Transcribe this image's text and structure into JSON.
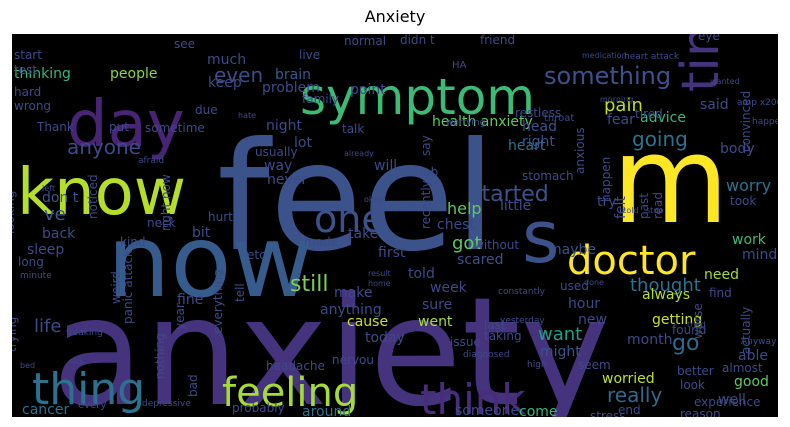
{
  "chart_data": {
    "type": "word_cloud",
    "title": "Anxiety",
    "background": "#000000",
    "colormap": "viridis",
    "words": [
      {
        "text": "anxiety",
        "weight": 100
      },
      {
        "text": "feel",
        "weight": 88
      },
      {
        "text": "now",
        "weight": 62
      },
      {
        "text": "know",
        "weight": 55
      },
      {
        "text": "m",
        "weight": 58
      },
      {
        "text": "day",
        "weight": 46
      },
      {
        "text": "symptom",
        "weight": 44
      },
      {
        "text": "thing",
        "weight": 40
      },
      {
        "text": "feeling",
        "weight": 40
      },
      {
        "text": "think",
        "weight": 40
      },
      {
        "text": "time",
        "weight": 42
      },
      {
        "text": "doctor",
        "weight": 34
      },
      {
        "text": "s",
        "weight": 36
      },
      {
        "text": "one",
        "weight": 28
      },
      {
        "text": "something",
        "weight": 22
      },
      {
        "text": "pain",
        "weight": 18
      },
      {
        "text": "going",
        "weight": 18
      },
      {
        "text": "anyone",
        "weight": 18
      },
      {
        "text": "even",
        "weight": 18
      },
      {
        "text": "really",
        "weight": 20
      },
      {
        "text": "started",
        "weight": 18
      },
      {
        "text": "still",
        "weight": 18
      },
      {
        "text": "thought",
        "weight": 18
      },
      {
        "text": "go",
        "weight": 20
      },
      {
        "text": "want",
        "weight": 18
      },
      {
        "text": "health anxiety",
        "weight": 14
      },
      {
        "text": "heart",
        "weight": 14
      },
      {
        "text": "got",
        "weight": 16
      },
      {
        "text": "help",
        "weight": 14
      },
      {
        "text": "life",
        "weight": 16
      },
      {
        "text": "ve",
        "weight": 16
      },
      {
        "text": "don t",
        "weight": 14
      },
      {
        "text": "worry",
        "weight": 14
      },
      {
        "text": "people",
        "weight": 12
      },
      {
        "text": "brain",
        "weight": 13
      },
      {
        "text": "thinking",
        "weight": 12
      },
      {
        "text": "cancer",
        "weight": 12
      },
      {
        "text": "around",
        "weight": 12
      },
      {
        "text": "someone",
        "weight": 12
      },
      {
        "text": "come",
        "weight": 12
      },
      {
        "text": "worried",
        "weight": 12
      },
      {
        "text": "good",
        "weight": 12
      },
      {
        "text": "getting",
        "weight": 12
      },
      {
        "text": "month",
        "weight": 12
      },
      {
        "text": "might",
        "weight": 12
      },
      {
        "text": "mind",
        "weight": 12
      },
      {
        "text": "work",
        "weight": 12
      },
      {
        "text": "need",
        "weight": 12
      },
      {
        "text": "always",
        "weight": 12
      },
      {
        "text": "head",
        "weight": 12
      },
      {
        "text": "right",
        "weight": 12
      },
      {
        "text": "recently",
        "weight": 11
      },
      {
        "text": "say",
        "weight": 11
      },
      {
        "text": "anxious",
        "weight": 11
      },
      {
        "text": "fear",
        "weight": 11
      },
      {
        "text": "advice",
        "weight": 11
      },
      {
        "text": "felt",
        "weight": 11
      },
      {
        "text": "happen",
        "weight": 11
      },
      {
        "text": "body",
        "weight": 11
      },
      {
        "text": "past",
        "weight": 10
      },
      {
        "text": "read",
        "weight": 10
      },
      {
        "text": "try",
        "weight": 12
      },
      {
        "text": "maybe",
        "weight": 11
      },
      {
        "text": "scared",
        "weight": 12
      },
      {
        "text": "chest",
        "weight": 11
      },
      {
        "text": "little",
        "weight": 11
      },
      {
        "text": "first",
        "weight": 11
      },
      {
        "text": "told",
        "weight": 11
      },
      {
        "text": "week",
        "weight": 11
      },
      {
        "text": "sure",
        "weight": 11
      },
      {
        "text": "went",
        "weight": 11
      },
      {
        "text": "hour",
        "weight": 11
      },
      {
        "text": "new",
        "weight": 11
      },
      {
        "text": "used",
        "weight": 10
      },
      {
        "text": "issue",
        "weight": 10
      },
      {
        "text": "seem",
        "weight": 10
      },
      {
        "text": "today",
        "weight": 11
      },
      {
        "text": "cause",
        "weight": 11
      },
      {
        "text": "anything",
        "weight": 11
      },
      {
        "text": "make",
        "weight": 11
      },
      {
        "text": "take",
        "weight": 11
      },
      {
        "text": "made",
        "weight": 10
      },
      {
        "text": "will",
        "weight": 11
      },
      {
        "text": "never",
        "weight": 10
      },
      {
        "text": "way",
        "weight": 10
      },
      {
        "text": "usually",
        "weight": 9
      },
      {
        "text": "lot",
        "weight": 11
      },
      {
        "text": "night",
        "weight": 11
      },
      {
        "text": "problem",
        "weight": 11
      },
      {
        "text": "keep",
        "weight": 11
      },
      {
        "text": "much",
        "weight": 11
      },
      {
        "text": "point",
        "weight": 11
      },
      {
        "text": "normal",
        "weight": 10
      },
      {
        "text": "friend",
        "weight": 10
      },
      {
        "text": "see",
        "weight": 10
      },
      {
        "text": "start",
        "weight": 10
      },
      {
        "text": "test",
        "weight": 10
      },
      {
        "text": "hard",
        "weight": 10
      },
      {
        "text": "wrong",
        "weight": 9
      },
      {
        "text": "Thank",
        "weight": 10
      },
      {
        "text": "sometime",
        "weight": 10
      },
      {
        "text": "back",
        "weight": 11
      },
      {
        "text": "sleep",
        "weight": 11
      },
      {
        "text": "long",
        "weight": 9
      },
      {
        "text": "trying",
        "weight": 10
      },
      {
        "text": "panic attack",
        "weight": 10
      },
      {
        "text": "weird",
        "weight": 10
      },
      {
        "text": "fine",
        "weight": 10
      },
      {
        "text": "year",
        "weight": 10
      },
      {
        "text": "bit",
        "weight": 11
      },
      {
        "text": "tell",
        "weight": 10
      },
      {
        "text": "everything",
        "weight": 10
      },
      {
        "text": "nothing",
        "weight": 10
      },
      {
        "text": "bad",
        "weight": 10
      },
      {
        "text": "probably",
        "weight": 9
      },
      {
        "text": "headache",
        "weight": 9
      },
      {
        "text": "nervou",
        "weight": 9
      },
      {
        "text": "last",
        "weight": 9
      },
      {
        "text": "taking",
        "weight": 9
      },
      {
        "text": "found",
        "weight": 9
      },
      {
        "text": "look",
        "weight": 9
      },
      {
        "text": "better",
        "weight": 9
      },
      {
        "text": "well",
        "weight": 11
      },
      {
        "text": "able",
        "weight": 10
      },
      {
        "text": "almost",
        "weight": 9
      },
      {
        "text": "actually",
        "weight": 9
      },
      {
        "text": "find",
        "weight": 9
      },
      {
        "text": "reason",
        "weight": 9
      },
      {
        "text": "experience",
        "weight": 9
      },
      {
        "text": "stress",
        "weight": 9
      },
      {
        "text": "end",
        "weight": 9
      },
      {
        "text": "tired",
        "weight": 9
      },
      {
        "text": "convinced",
        "weight": 8
      },
      {
        "text": "restless",
        "weight": 8
      },
      {
        "text": "eye",
        "weight": 8
      },
      {
        "text": "family",
        "weight": 8
      },
      {
        "text": "live",
        "weight": 8
      },
      {
        "text": "didn t",
        "weight": 8
      },
      {
        "text": "said",
        "weight": 9
      },
      {
        "text": "due",
        "weight": 8
      },
      {
        "text": "put",
        "weight": 8
      },
      {
        "text": "talk",
        "weight": 8
      },
      {
        "text": "stomach",
        "weight": 8
      },
      {
        "text": "without",
        "weight": 8
      },
      {
        "text": "job",
        "weight": 8
      },
      {
        "text": "hurt",
        "weight": 8
      },
      {
        "text": "neck",
        "weight": 8
      },
      {
        "text": "kind",
        "weight": 8
      },
      {
        "text": "right now",
        "weight": 7
      },
      {
        "text": "noticed",
        "weight": 7
      },
      {
        "text": "etc",
        "weight": 8
      },
      {
        "text": "looking",
        "weight": 7
      },
      {
        "text": "took",
        "weight": 8
      },
      {
        "text": "worse",
        "weight": 8
      },
      {
        "text": "constantly",
        "weight": 6
      },
      {
        "text": "throat",
        "weight": 7
      },
      {
        "text": "heart attack",
        "weight": 6
      },
      {
        "text": "happened",
        "weight": 6
      },
      {
        "text": "worrying",
        "weight": 6
      },
      {
        "text": "freaking",
        "weight": 6
      },
      {
        "text": "yesterday",
        "weight": 6
      },
      {
        "text": "diagnosed",
        "weight": 6
      },
      {
        "text": "high",
        "weight": 6
      },
      {
        "text": "Anyway",
        "weight": 6
      },
      {
        "text": "minute",
        "weight": 6
      },
      {
        "text": "afraid",
        "weight": 6
      },
      {
        "text": "every",
        "weight": 7
      },
      {
        "text": "depressive",
        "weight": 6
      },
      {
        "text": "amp x200B",
        "weight": 6
      },
      {
        "text": "medication",
        "weight": 5
      },
      {
        "text": "morning",
        "weight": 5
      },
      {
        "text": "already",
        "weight": 5
      },
      {
        "text": "home",
        "weight": 5
      },
      {
        "text": "result",
        "weight": 5
      },
      {
        "text": "sick",
        "weight": 5
      },
      {
        "text": "bed",
        "weight": 5
      },
      {
        "text": "tried",
        "weight": 5
      },
      {
        "text": "done",
        "weight": 5
      },
      {
        "text": "cold",
        "weight": 5
      },
      {
        "text": "stop",
        "weight": 5
      },
      {
        "text": "okay",
        "weight": 5
      },
      {
        "text": "wanted",
        "weight": 5
      },
      {
        "text": "left",
        "weight": 5
      },
      {
        "text": "hate",
        "weight": 5
      },
      {
        "text": "HA",
        "weight": 5
      }
    ]
  }
}
